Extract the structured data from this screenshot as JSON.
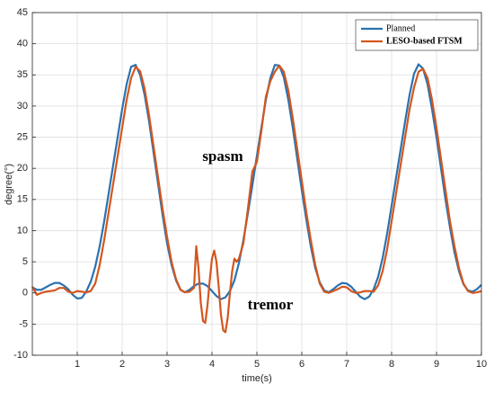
{
  "chart_data": {
    "type": "line",
    "xlabel": "time(s)",
    "ylabel": "degree(°)",
    "xlim": [
      0,
      10
    ],
    "xticks": [
      1,
      2,
      3,
      4,
      5,
      6,
      7,
      8,
      9,
      10
    ],
    "ylim": [
      -10,
      45
    ],
    "yticks": [
      -10,
      -5,
      0,
      5,
      10,
      15,
      20,
      25,
      30,
      35,
      40,
      45
    ],
    "grid": true,
    "legend": "upper right",
    "annotations": [
      "spasm",
      "tremor"
    ],
    "series": [
      {
        "name": "Planned",
        "color": "#2a72b0",
        "x": [
          0,
          0.1,
          0.2,
          0.3,
          0.4,
          0.5,
          0.6,
          0.7,
          0.8,
          0.9,
          1,
          1.1,
          1.2,
          1.3,
          1.4,
          1.5,
          1.6,
          1.7,
          1.8,
          1.9,
          2,
          2.1,
          2.2,
          2.3,
          2.4,
          2.5,
          2.6,
          2.7,
          2.8,
          2.9,
          3,
          3.1,
          3.2,
          3.3,
          3.4,
          3.5,
          3.6,
          3.7,
          3.8,
          3.9,
          4,
          4.1,
          4.2,
          4.3,
          4.4,
          4.5,
          4.6,
          4.7,
          4.8,
          4.9,
          5,
          5.1,
          5.2,
          5.3,
          5.4,
          5.5,
          5.6,
          5.7,
          5.8,
          5.9,
          6,
          6.1,
          6.2,
          6.3,
          6.4,
          6.5,
          6.6,
          6.7,
          6.8,
          6.9,
          7,
          7.1,
          7.2,
          7.3,
          7.4,
          7.5,
          7.6,
          7.7,
          7.8,
          7.9,
          8,
          8.1,
          8.2,
          8.3,
          8.4,
          8.5,
          8.6,
          8.7,
          8.8,
          8.9,
          9,
          9.1,
          9.2,
          9.3,
          9.4,
          9.5,
          9.6,
          9.7,
          9.8,
          9.9,
          10
        ],
        "values": [
          0.9,
          0.5,
          0.5,
          0.9,
          1.3,
          1.6,
          1.6,
          1.2,
          0.6,
          -0.3,
          -0.9,
          -0.8,
          0.2,
          1.8,
          4.2,
          7.5,
          11.5,
          16,
          20.5,
          25,
          29.5,
          33.5,
          36.3,
          36.6,
          35,
          31.8,
          27.5,
          22.5,
          17.5,
          12.5,
          8,
          4.5,
          2,
          0.5,
          0.1,
          0.5,
          1.1,
          1.5,
          1.5,
          1.1,
          0.3,
          -0.5,
          -1,
          -0.7,
          0.3,
          2,
          4.8,
          8.5,
          12.8,
          17.3,
          22,
          26.5,
          31,
          34.5,
          36.6,
          36.5,
          34.6,
          31,
          26.5,
          21.5,
          16.5,
          11.8,
          7.5,
          4,
          1.7,
          0.4,
          0.1,
          0.6,
          1.2,
          1.6,
          1.5,
          1,
          0.2,
          -0.6,
          -1,
          -0.6,
          0.6,
          2.6,
          5.6,
          9.5,
          14,
          18.5,
          23,
          27.5,
          31.8,
          35.2,
          36.7,
          36,
          33.5,
          29.5,
          25,
          20,
          15,
          10.5,
          6.5,
          3.5,
          1.4,
          0.4,
          0.2,
          0.6,
          1.3
        ]
      },
      {
        "name": "LESO-based FTSM",
        "color": "#d4561e",
        "x": [
          0,
          0.1,
          0.2,
          0.3,
          0.4,
          0.5,
          0.6,
          0.7,
          0.8,
          0.9,
          1,
          1.1,
          1.2,
          1.3,
          1.4,
          1.5,
          1.6,
          1.7,
          1.8,
          1.9,
          2,
          2.1,
          2.2,
          2.3,
          2.4,
          2.5,
          2.6,
          2.7,
          2.8,
          2.9,
          3,
          3.1,
          3.2,
          3.3,
          3.4,
          3.5,
          3.6,
          3.65,
          3.7,
          3.75,
          3.8,
          3.85,
          3.9,
          3.95,
          4,
          4.05,
          4.1,
          4.15,
          4.2,
          4.25,
          4.3,
          4.35,
          4.4,
          4.45,
          4.5,
          4.55,
          4.6,
          4.7,
          4.8,
          4.9,
          5,
          5.1,
          5.2,
          5.3,
          5.4,
          5.5,
          5.6,
          5.7,
          5.8,
          5.9,
          6,
          6.1,
          6.2,
          6.3,
          6.4,
          6.5,
          6.6,
          6.7,
          6.8,
          6.9,
          7,
          7.1,
          7.2,
          7.3,
          7.4,
          7.5,
          7.6,
          7.7,
          7.8,
          7.9,
          8,
          8.1,
          8.2,
          8.3,
          8.4,
          8.5,
          8.6,
          8.7,
          8.8,
          8.9,
          9,
          9.1,
          9.2,
          9.3,
          9.4,
          9.5,
          9.6,
          9.7,
          9.8,
          9.9,
          10
        ],
        "values": [
          1,
          -0.3,
          0,
          0.2,
          0.3,
          0.4,
          0.8,
          0.8,
          0.2,
          0,
          0.3,
          0.2,
          0.1,
          0.3,
          1.5,
          4.5,
          8.5,
          13,
          17.5,
          22,
          26.5,
          31,
          34.5,
          36.3,
          35.6,
          32.8,
          28.5,
          23.5,
          18.5,
          13.5,
          9,
          5,
          2.2,
          0.5,
          0.1,
          0.2,
          0.8,
          7.5,
          4,
          -1.5,
          -4.5,
          -4.8,
          -2,
          2,
          5.5,
          6.8,
          5,
          1,
          -3.5,
          -6,
          -6.3,
          -4,
          0,
          3.5,
          5.5,
          5,
          5.5,
          8,
          13.5,
          19.5,
          21,
          26,
          31.5,
          34,
          35.5,
          36.5,
          35.5,
          32.5,
          28,
          23,
          18,
          13,
          8.5,
          4.5,
          1.5,
          0.2,
          0,
          0.3,
          0.6,
          1,
          0.9,
          0.3,
          0,
          0.1,
          0.3,
          0.3,
          0.2,
          1.2,
          3.5,
          7,
          11.5,
          16,
          20.5,
          25,
          29.5,
          33,
          35.5,
          36,
          34.5,
          31,
          26.5,
          21.5,
          16.5,
          11.5,
          7.5,
          4,
          1.5,
          0.3,
          0,
          0.1,
          0.3
        ]
      }
    ]
  }
}
